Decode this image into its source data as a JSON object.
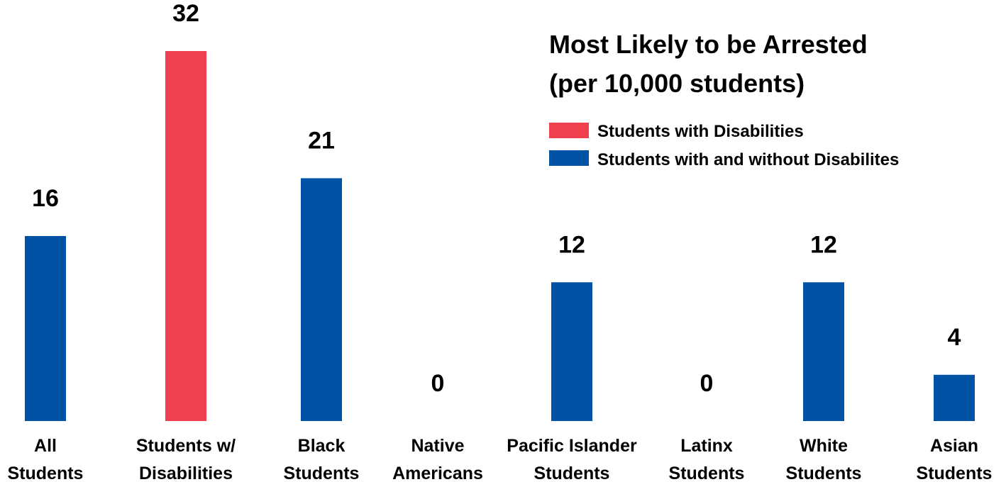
{
  "chart_data": {
    "type": "bar",
    "title_lines": [
      "Most Likely to be Arrested",
      "(per 10,000 students)"
    ],
    "categories": [
      [
        "All",
        "Students"
      ],
      [
        "Students w/",
        "Disabilities"
      ],
      [
        "Black",
        "Students"
      ],
      [
        "Native",
        "Americans"
      ],
      [
        "Pacific Islander",
        "Students"
      ],
      [
        "Latinx",
        "Students"
      ],
      [
        "White",
        "Students"
      ],
      [
        "Asian",
        "Students"
      ]
    ],
    "values": [
      16,
      32,
      21,
      0,
      12,
      0,
      12,
      4
    ],
    "value_labels": [
      "16",
      "32",
      "21",
      "0",
      "12",
      "0",
      "12",
      "4"
    ],
    "series_index": [
      1,
      0,
      1,
      1,
      1,
      1,
      1,
      1
    ],
    "legend": [
      {
        "label": "Students with Disabilities",
        "color": "#ef4050"
      },
      {
        "label": "Students with and without Disabilites",
        "color": "#0052a5"
      }
    ],
    "legend_position": "top-right",
    "ylim": [
      0,
      32
    ],
    "grid": false,
    "axes_visible": false
  }
}
